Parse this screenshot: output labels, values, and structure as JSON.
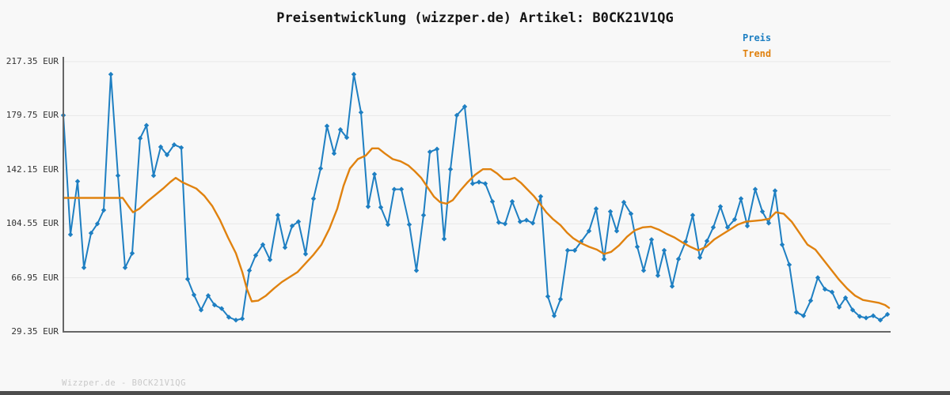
{
  "title": "Preisentwicklung (wizzper.de) Artikel: B0CK21V1QG",
  "watermark": "Wizzper.de - B0CK21V1QG",
  "colors": {
    "price_line": "#1e7fc2",
    "trend_line": "#e0820f",
    "grid": "#e7e7e7",
    "axis": "#666666",
    "background": "#f8f8f8"
  },
  "legend": [
    {
      "label": "Preis",
      "color": "#1e7fc2"
    },
    {
      "label": "Trend",
      "color": "#e0820f"
    }
  ],
  "y_axis": {
    "unit": "EUR",
    "ticks": [
      {
        "label": "217.35 EUR",
        "value": 217.35
      },
      {
        "label": "179.75 EUR",
        "value": 179.75
      },
      {
        "label": "142.15 EUR",
        "value": 142.15
      },
      {
        "label": "104.55 EUR",
        "value": 104.55
      },
      {
        "label": "66.95 EUR",
        "value": 66.95
      },
      {
        "label": "29.35 EUR",
        "value": 29.35
      }
    ]
  },
  "chart_data": {
    "type": "line",
    "title": "Preisentwicklung (wizzper.de) Artikel: B0CK21V1QG",
    "xlabel": "",
    "ylabel": "EUR",
    "ylim": [
      29.35,
      217.35
    ],
    "grid": true,
    "legend_position": "top-right",
    "x_axis_tick_labels": "none (time axis unlabeled in image)",
    "series": [
      {
        "name": "Preis",
        "color": "#1e7fc2",
        "markers": "diamond",
        "points": [
          [
            80,
            180
          ],
          [
            89,
            97
          ],
          [
            98,
            134
          ],
          [
            106,
            74
          ],
          [
            115,
            98
          ],
          [
            123,
            104.5
          ],
          [
            131,
            114
          ],
          [
            140,
            208.5
          ],
          [
            149,
            138
          ],
          [
            158,
            74
          ],
          [
            167,
            84
          ],
          [
            177,
            164
          ],
          [
            185,
            173
          ],
          [
            194,
            138
          ],
          [
            203,
            158
          ],
          [
            211,
            152.5
          ],
          [
            220,
            159.5
          ],
          [
            229,
            157.5
          ],
          [
            237,
            66
          ],
          [
            245,
            55
          ],
          [
            254,
            44.5
          ],
          [
            263,
            54.5
          ],
          [
            271,
            48
          ],
          [
            280,
            45.5
          ],
          [
            289,
            39.5
          ],
          [
            298,
            37.5
          ],
          [
            306,
            38.5
          ],
          [
            315,
            72
          ],
          [
            323,
            82.5
          ],
          [
            332,
            90
          ],
          [
            341,
            79.5
          ],
          [
            351,
            110.5
          ],
          [
            360,
            88
          ],
          [
            369,
            103
          ],
          [
            377,
            106
          ],
          [
            386,
            83.5
          ],
          [
            396,
            122
          ],
          [
            405,
            143
          ],
          [
            413,
            172.5
          ],
          [
            422,
            153.5
          ],
          [
            430,
            170
          ],
          [
            438,
            164.5
          ],
          [
            447,
            208.5
          ],
          [
            456,
            182
          ],
          [
            465,
            116.5
          ],
          [
            473,
            139
          ],
          [
            481,
            116
          ],
          [
            490,
            104
          ],
          [
            498,
            128.5
          ],
          [
            507,
            128.5
          ],
          [
            517,
            104
          ],
          [
            526,
            72
          ],
          [
            535,
            110.5
          ],
          [
            543,
            154.5
          ],
          [
            552,
            156.5
          ],
          [
            561,
            94
          ],
          [
            569,
            142.5
          ],
          [
            577,
            180
          ],
          [
            587,
            186
          ],
          [
            597,
            132.5
          ],
          [
            605,
            133.5
          ],
          [
            613,
            132.5
          ],
          [
            622,
            120
          ],
          [
            630,
            105.5
          ],
          [
            638,
            104.5
          ],
          [
            647,
            120
          ],
          [
            657,
            106
          ],
          [
            665,
            107
          ],
          [
            673,
            105
          ],
          [
            683,
            123.5
          ],
          [
            692,
            54
          ],
          [
            700,
            40.5
          ],
          [
            708,
            52
          ],
          [
            717,
            86
          ],
          [
            726,
            86
          ],
          [
            734,
            92
          ],
          [
            744,
            99.5
          ],
          [
            753,
            115
          ],
          [
            763,
            80
          ],
          [
            771,
            113
          ],
          [
            779,
            99.5
          ],
          [
            788,
            119.5
          ],
          [
            797,
            111.5
          ],
          [
            805,
            88.5
          ],
          [
            813,
            72
          ],
          [
            823,
            93.5
          ],
          [
            831,
            68.5
          ],
          [
            839,
            86
          ],
          [
            849,
            61
          ],
          [
            857,
            80
          ],
          [
            866,
            92
          ],
          [
            875,
            110.5
          ],
          [
            884,
            81
          ],
          [
            893,
            92.5
          ],
          [
            901,
            102
          ],
          [
            910,
            116.5
          ],
          [
            919,
            102
          ],
          [
            928,
            107.5
          ],
          [
            936,
            122
          ],
          [
            944,
            103
          ],
          [
            954,
            128.5
          ],
          [
            963,
            113
          ],
          [
            971,
            105
          ],
          [
            979,
            127.5
          ],
          [
            988,
            90
          ],
          [
            997,
            76
          ],
          [
            1006,
            43
          ],
          [
            1015,
            40.5
          ],
          [
            1024,
            51
          ],
          [
            1033,
            67
          ],
          [
            1042,
            59
          ],
          [
            1051,
            57
          ],
          [
            1060,
            46.5
          ],
          [
            1068,
            53
          ],
          [
            1077,
            44.5
          ],
          [
            1086,
            40
          ],
          [
            1094,
            39
          ],
          [
            1103,
            40.5
          ],
          [
            1112,
            37.5
          ],
          [
            1121,
            41.5
          ]
        ]
      },
      {
        "name": "Trend",
        "color": "#e0820f",
        "markers": "none",
        "points": [
          [
            80,
            122.5
          ],
          [
            155,
            122.5
          ],
          [
            162,
            117
          ],
          [
            168,
            112.5
          ],
          [
            176,
            115
          ],
          [
            186,
            120
          ],
          [
            196,
            124.5
          ],
          [
            206,
            129
          ],
          [
            215,
            133.5
          ],
          [
            222,
            136.5
          ],
          [
            230,
            133.5
          ],
          [
            238,
            131.5
          ],
          [
            248,
            129
          ],
          [
            258,
            124
          ],
          [
            268,
            117
          ],
          [
            278,
            107
          ],
          [
            288,
            95
          ],
          [
            298,
            84
          ],
          [
            306,
            71
          ],
          [
            312,
            59
          ],
          [
            318,
            50.5
          ],
          [
            326,
            51
          ],
          [
            336,
            54.5
          ],
          [
            346,
            59.5
          ],
          [
            356,
            64
          ],
          [
            366,
            67.5
          ],
          [
            376,
            71
          ],
          [
            386,
            77
          ],
          [
            396,
            83
          ],
          [
            406,
            90
          ],
          [
            416,
            101
          ],
          [
            426,
            115
          ],
          [
            434,
            131
          ],
          [
            442,
            143
          ],
          [
            452,
            149.5
          ],
          [
            462,
            152
          ],
          [
            470,
            157
          ],
          [
            478,
            157
          ],
          [
            486,
            153.5
          ],
          [
            496,
            149.5
          ],
          [
            506,
            148
          ],
          [
            516,
            145
          ],
          [
            524,
            141
          ],
          [
            532,
            136.5
          ],
          [
            540,
            130
          ],
          [
            548,
            123.5
          ],
          [
            556,
            119.5
          ],
          [
            564,
            118.5
          ],
          [
            572,
            121
          ],
          [
            582,
            128
          ],
          [
            590,
            133
          ],
          [
            600,
            138.5
          ],
          [
            610,
            142.5
          ],
          [
            620,
            142.5
          ],
          [
            628,
            139.5
          ],
          [
            636,
            135.5
          ],
          [
            644,
            135.5
          ],
          [
            650,
            136.5
          ],
          [
            658,
            133
          ],
          [
            666,
            128.5
          ],
          [
            674,
            124
          ],
          [
            682,
            118.5
          ],
          [
            690,
            112.5
          ],
          [
            698,
            108
          ],
          [
            708,
            103.5
          ],
          [
            716,
            98.5
          ],
          [
            724,
            94.5
          ],
          [
            734,
            91
          ],
          [
            744,
            88.5
          ],
          [
            754,
            86.5
          ],
          [
            763,
            83.5
          ],
          [
            772,
            85
          ],
          [
            782,
            89.5
          ],
          [
            792,
            95.5
          ],
          [
            802,
            100
          ],
          [
            812,
            102
          ],
          [
            822,
            102.5
          ],
          [
            832,
            100.5
          ],
          [
            842,
            97.5
          ],
          [
            852,
            95
          ],
          [
            862,
            91.5
          ],
          [
            872,
            88.5
          ],
          [
            882,
            86
          ],
          [
            892,
            88.5
          ],
          [
            902,
            93.5
          ],
          [
            912,
            97
          ],
          [
            922,
            100.5
          ],
          [
            932,
            104
          ],
          [
            942,
            106
          ],
          [
            952,
            106.5
          ],
          [
            962,
            107
          ],
          [
            972,
            108
          ],
          [
            980,
            112.5
          ],
          [
            990,
            111.5
          ],
          [
            1000,
            106
          ],
          [
            1010,
            98
          ],
          [
            1020,
            90
          ],
          [
            1030,
            86.5
          ],
          [
            1040,
            79.5
          ],
          [
            1050,
            72.5
          ],
          [
            1060,
            65.5
          ],
          [
            1070,
            59.5
          ],
          [
            1080,
            54.5
          ],
          [
            1090,
            51.5
          ],
          [
            1100,
            50.5
          ],
          [
            1110,
            49.5
          ],
          [
            1118,
            48
          ],
          [
            1123,
            46
          ]
        ]
      }
    ]
  }
}
